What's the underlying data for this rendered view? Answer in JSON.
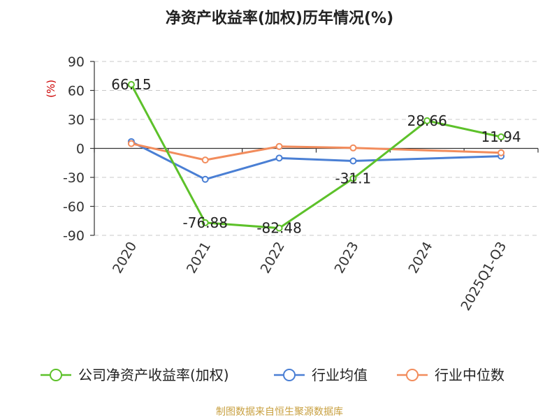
{
  "chart_data": {
    "type": "line",
    "title": "净资产收益率(加权)历年情况(%)",
    "unit_label": "(%)",
    "categories": [
      "2020",
      "2021",
      "2022",
      "2023",
      "2024",
      "2025Q1-Q3"
    ],
    "ylim": [
      -90,
      90
    ],
    "yticks": [
      90,
      60,
      30,
      0,
      -30,
      -60,
      -90
    ],
    "grid": true,
    "legend_position": "bottom",
    "series": [
      {
        "name": "公司净资产收益率(加权)",
        "color": "#5dc12a",
        "values": [
          66.15,
          -76.88,
          -82.48,
          -31.1,
          28.66,
          11.94
        ],
        "labels": [
          "66.15",
          "-76.88",
          "-82.48",
          "-31.1",
          "28.66",
          "11.94"
        ]
      },
      {
        "name": "行业均值",
        "color": "#4a7fd4",
        "values": [
          7,
          -32,
          -10,
          -13,
          null,
          -8
        ],
        "labels": []
      },
      {
        "name": "行业中位数",
        "color": "#f28c5c",
        "values": [
          5,
          -12,
          2,
          0.5,
          null,
          -4.5
        ],
        "labels": []
      }
    ],
    "source": "制图数据来自恒生聚源数据库"
  }
}
